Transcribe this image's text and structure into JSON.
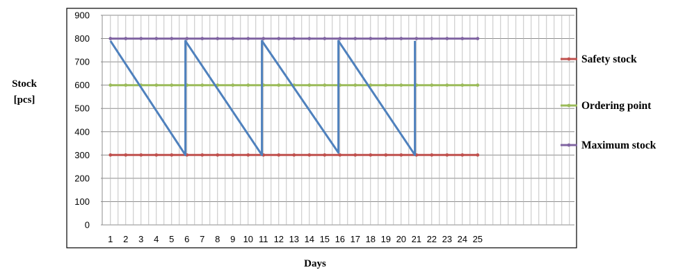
{
  "chart_data": {
    "type": "line",
    "xlabel": "Days",
    "ylabel_lines": [
      "Stock",
      "[pcs]"
    ],
    "ylim": [
      0,
      900
    ],
    "y_ticks": [
      0,
      100,
      200,
      300,
      400,
      500,
      600,
      700,
      800,
      900
    ],
    "categories": [
      "1",
      "2",
      "3",
      "4",
      "5",
      "6",
      "7",
      "8",
      "9",
      "10",
      "11",
      "12",
      "13",
      "14",
      "15",
      "16",
      "17",
      "18",
      "19",
      "20",
      "21",
      "22",
      "23",
      "24",
      "25"
    ],
    "x_minor_per_day": 2,
    "x_extra_minor_after_last": 16,
    "grid": true,
    "legend_position": "right",
    "series": [
      {
        "name": "Safety stock",
        "color": "#c0504d",
        "marker": "circle",
        "values": [
          300,
          300,
          300,
          300,
          300,
          300,
          300,
          300,
          300,
          300,
          300,
          300,
          300,
          300,
          300,
          300,
          300,
          300,
          300,
          300,
          300,
          300,
          300,
          300,
          300
        ]
      },
      {
        "name": "Ordering point",
        "color": "#9bbb59",
        "marker": "circle",
        "values": [
          600,
          600,
          600,
          600,
          600,
          600,
          600,
          600,
          600,
          600,
          600,
          600,
          600,
          600,
          600,
          600,
          600,
          600,
          600,
          600,
          600,
          600,
          600,
          600,
          600
        ]
      },
      {
        "name": "Maximum stock",
        "color": "#8064a2",
        "marker": "circle",
        "values": [
          800,
          800,
          800,
          800,
          800,
          800,
          800,
          800,
          800,
          800,
          800,
          800,
          800,
          800,
          800,
          800,
          800,
          800,
          800,
          800,
          800,
          800,
          800,
          800,
          800
        ]
      }
    ],
    "stock_level": {
      "color": "#4f81bd",
      "points": [
        [
          1,
          790
        ],
        [
          5.9,
          300
        ],
        [
          5.9,
          790
        ],
        [
          10.9,
          300
        ],
        [
          10.9,
          790
        ],
        [
          15.9,
          310
        ],
        [
          15.9,
          790
        ],
        [
          20.9,
          300
        ],
        [
          20.9,
          790
        ]
      ]
    }
  }
}
